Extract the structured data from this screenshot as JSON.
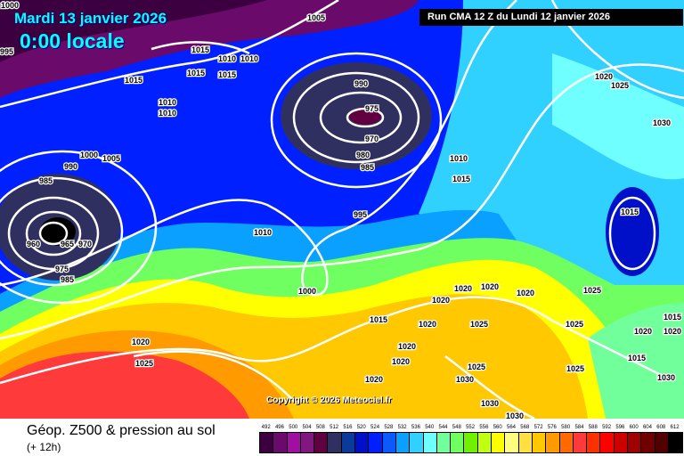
{
  "header": {
    "date": "Mardi 13 janvier 2026",
    "time": "0:00 locale",
    "run": "Run CMA 12 Z du Lundi 12 janvier 2026"
  },
  "copyright": "Copyright © 2026 Meteociel.fr",
  "footer": {
    "title": "Géop. Z500 & pression au sol",
    "subtitle": "(+ 12h)"
  },
  "scale": {
    "values": [
      "492",
      "496",
      "500",
      "504",
      "508",
      "512",
      "516",
      "520",
      "524",
      "528",
      "532",
      "536",
      "540",
      "544",
      "548",
      "552",
      "556",
      "560",
      "564",
      "568",
      "572",
      "576",
      "580",
      "584",
      "588",
      "592",
      "596",
      "600",
      "604",
      "608",
      "612"
    ],
    "colors": [
      "#3c0040",
      "#6a0a6a",
      "#a010a0",
      "#801880",
      "#600040",
      "#303060",
      "#0a3a9a",
      "#0010c8",
      "#0020ff",
      "#0a5aff",
      "#0aa0ff",
      "#30d0ff",
      "#70ffff",
      "#70ff9a",
      "#70ff60",
      "#70f000",
      "#c0ff10",
      "#ffff00",
      "#ffff80",
      "#ffe040",
      "#ffc800",
      "#ff9a00",
      "#ff6a00",
      "#ff3a3a",
      "#ff3000",
      "#ff0000",
      "#cc0000",
      "#a00000",
      "#700000",
      "#500000",
      "#000000"
    ]
  },
  "isobar_labels": [
    "1000",
    "995",
    "1005",
    "1015",
    "1015",
    "1015",
    "1010",
    "1010",
    "1015",
    "1010",
    "1010",
    "1000",
    "1005",
    "990",
    "985",
    "960",
    "965",
    "970",
    "975",
    "985",
    "990",
    "975",
    "970",
    "980",
    "985",
    "995",
    "1010",
    "1015",
    "1010",
    "1000",
    "1020",
    "1025",
    "1020",
    "1025",
    "1030",
    "1015",
    "1025",
    "1020",
    "1020",
    "1020",
    "1020",
    "1020",
    "1025",
    "1015",
    "1020",
    "1020",
    "1025",
    "1020",
    "1020",
    "1025",
    "1030",
    "1030",
    "1030",
    "1025",
    "1015",
    "1020",
    "1030",
    "1015"
  ]
}
